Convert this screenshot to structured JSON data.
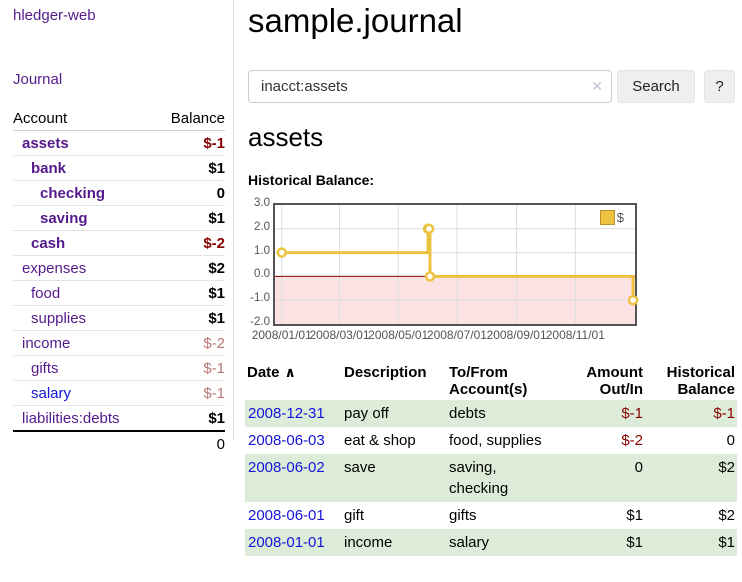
{
  "colors": {
    "link_visited": "#551a8b",
    "link_new": "#1414dd",
    "neg_strong": "#8b0000",
    "neg_muted": "#b87878",
    "stripe": "#dcecd8",
    "divider": "#dddddd"
  },
  "sidebar": {
    "app_title": "hledger-web",
    "journal_link": "Journal",
    "accounts": {
      "header": {
        "account": "Account",
        "balance": "Balance"
      },
      "rows": [
        {
          "name": "assets",
          "balance": "$-1"
        },
        {
          "name": "bank",
          "balance": "$1"
        },
        {
          "name": "checking",
          "balance": "0"
        },
        {
          "name": "saving",
          "balance": "$1"
        },
        {
          "name": "cash",
          "balance": "$-2"
        },
        {
          "name": "expenses",
          "balance": "$2"
        },
        {
          "name": "food",
          "balance": "$1"
        },
        {
          "name": "supplies",
          "balance": "$1"
        },
        {
          "name": "income",
          "balance": "$-2"
        },
        {
          "name": "gifts",
          "balance": "$-1"
        },
        {
          "name": "salary",
          "balance": "$-1"
        },
        {
          "name": "liabilities:debts",
          "balance": "$1"
        }
      ],
      "total": "0"
    }
  },
  "main": {
    "title": "sample.journal",
    "search": {
      "value": "inacct:assets",
      "clear_icon": "✕",
      "search_button": "Search",
      "help_button": "?"
    },
    "account_heading": "assets",
    "chart_title": "Historical Balance:",
    "register": {
      "headers": {
        "date": "Date",
        "sort_icon": "∧",
        "description": "Description",
        "tofrom_line1": "To/From",
        "tofrom_line2": "Account(s)",
        "amount_line1": "Amount",
        "amount_line2": "Out/In",
        "balance_line1": "Historical",
        "balance_line2": "Balance"
      },
      "rows": [
        {
          "date": "2008-12-31",
          "description": "pay off",
          "accounts": "debts",
          "amount": "$-1",
          "balance": "$-1"
        },
        {
          "date": "2008-06-03",
          "description": "eat & shop",
          "accounts": "food, supplies",
          "amount": "$-2",
          "balance": "0"
        },
        {
          "date": "2008-06-02",
          "description": "save",
          "accounts": "saving, checking",
          "amount": "0",
          "balance": "$2"
        },
        {
          "date": "2008-06-01",
          "description": "gift",
          "accounts": "gifts",
          "amount": "$1",
          "balance": "$2"
        },
        {
          "date": "2008-01-01",
          "description": "income",
          "accounts": "salary",
          "amount": "$1",
          "balance": "$1"
        }
      ]
    }
  },
  "chart_data": {
    "type": "line",
    "title": "Historical Balance:",
    "legend_position": "top-right",
    "grid": true,
    "xlim": [
      "2007-12-25",
      "2009-01-02"
    ],
    "ylim": [
      -2,
      3
    ],
    "x_ticks": [
      {
        "date": "2008-01-01",
        "label": "2008/01/01"
      },
      {
        "date": "2008-03-01",
        "label": "2008/03/01"
      },
      {
        "date": "2008-05-01",
        "label": "2008/05/01"
      },
      {
        "date": "2008-07-01",
        "label": "2008/07/01"
      },
      {
        "date": "2008-09-01",
        "label": "2008/09/01"
      },
      {
        "date": "2008-11-01",
        "label": "2008/11/01"
      }
    ],
    "y_ticks": [
      {
        "value": 3,
        "label": "3.0"
      },
      {
        "value": 2,
        "label": "2.0"
      },
      {
        "value": 1,
        "label": "1.0"
      },
      {
        "value": 0,
        "label": "0.0"
      },
      {
        "value": -1,
        "label": "-1.0"
      },
      {
        "value": -2,
        "label": "-2.0"
      }
    ],
    "series": [
      {
        "name": "$",
        "color": "#edc240",
        "step": true,
        "marker": "open-circle",
        "points": [
          [
            "2008-01-01",
            1
          ],
          [
            "2008-06-01",
            2
          ],
          [
            "2008-06-02",
            2
          ],
          [
            "2008-06-03",
            0
          ],
          [
            "2008-12-31",
            -1
          ]
        ]
      }
    ],
    "negative_region_color": "#fce2e3",
    "zero_line_color": "#8b0000",
    "grid_color": "#dddddd",
    "border_color": "#545454"
  }
}
